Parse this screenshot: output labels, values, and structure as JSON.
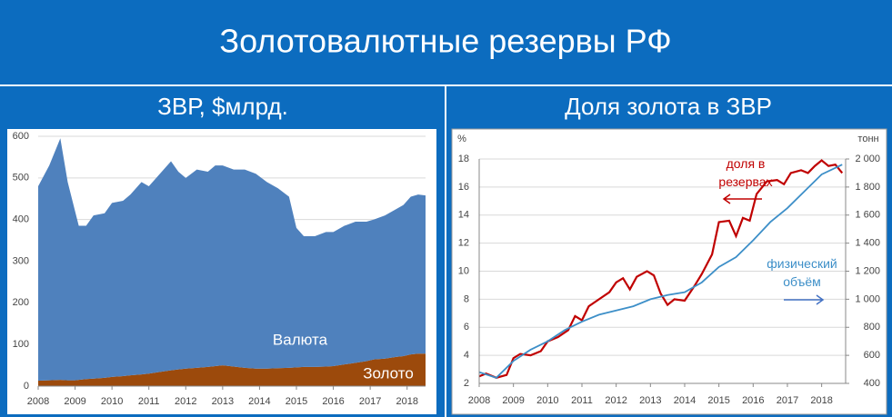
{
  "title": "Золотовалютные резервы РФ",
  "chart_data": [
    {
      "type": "stacked_area",
      "title": "ЗВР, $млрд.",
      "x": [
        2008.0,
        2008.3,
        2008.6,
        2008.8,
        2009.0,
        2009.1,
        2009.3,
        2009.5,
        2009.8,
        2010.0,
        2010.3,
        2010.5,
        2010.8,
        2011.0,
        2011.3,
        2011.6,
        2011.8,
        2012.0,
        2012.3,
        2012.6,
        2012.8,
        2013.0,
        2013.3,
        2013.6,
        2013.9,
        2014.2,
        2014.5,
        2014.8,
        2015.0,
        2015.2,
        2015.5,
        2015.8,
        2016.0,
        2016.3,
        2016.6,
        2016.9,
        2017.1,
        2017.4,
        2017.7,
        2017.9,
        2018.1,
        2018.3,
        2018.5
      ],
      "series": [
        {
          "name": "Золото",
          "color": "#9c4a0c",
          "values": [
            13,
            14,
            15,
            14,
            14,
            15,
            17,
            18,
            20,
            22,
            24,
            26,
            28,
            30,
            34,
            38,
            40,
            42,
            44,
            46,
            48,
            50,
            47,
            44,
            42,
            42,
            43,
            44,
            45,
            46,
            46,
            47,
            48,
            52,
            56,
            60,
            64,
            66,
            70,
            72,
            76,
            78,
            78
          ]
        },
        {
          "name": "Валюта",
          "color": "#4f81bd",
          "values": [
            467,
            516,
            580,
            476,
            406,
            370,
            368,
            392,
            395,
            418,
            421,
            434,
            462,
            450,
            476,
            502,
            475,
            458,
            476,
            469,
            482,
            480,
            473,
            476,
            468,
            448,
            432,
            411,
            335,
            314,
            314,
            323,
            322,
            333,
            339,
            335,
            336,
            344,
            355,
            363,
            379,
            382,
            380
          ]
        }
      ],
      "xlim": [
        2008,
        2018.5
      ],
      "xticks": [
        2008,
        2009,
        2010,
        2011,
        2012,
        2013,
        2014,
        2015,
        2016,
        2017,
        2018
      ],
      "ylim": [
        0,
        600
      ],
      "yticks": [
        0,
        100,
        200,
        300,
        400,
        500,
        600
      ],
      "grid": true
    },
    {
      "type": "line",
      "title": "Доля золота в ЗВР",
      "ylabel": "%",
      "y2label": "тонн",
      "series": [
        {
          "name": "доля в резервах",
          "color": "#c00000",
          "x": [
            2008.0,
            2008.2,
            2008.5,
            2008.8,
            2009.0,
            2009.2,
            2009.5,
            2009.8,
            2010.0,
            2010.3,
            2010.6,
            2010.8,
            2011.0,
            2011.2,
            2011.5,
            2011.8,
            2012.0,
            2012.2,
            2012.4,
            2012.6,
            2012.9,
            2013.1,
            2013.3,
            2013.5,
            2013.7,
            2014.0,
            2014.3,
            2014.5,
            2014.8,
            2015.0,
            2015.3,
            2015.5,
            2015.7,
            2015.9,
            2016.1,
            2016.4,
            2016.7,
            2016.9,
            2017.1,
            2017.4,
            2017.6,
            2017.8,
            2018.0,
            2018.2,
            2018.4,
            2018.6
          ],
          "values": [
            2.5,
            2.7,
            2.4,
            2.6,
            3.8,
            4.1,
            4.0,
            4.3,
            5.0,
            5.3,
            5.8,
            6.8,
            6.5,
            7.5,
            8.0,
            8.5,
            9.2,
            9.5,
            8.7,
            9.6,
            10.0,
            9.7,
            8.4,
            7.6,
            8.0,
            7.9,
            9.0,
            9.8,
            11.2,
            13.5,
            13.6,
            12.5,
            13.8,
            13.6,
            15.5,
            16.4,
            16.5,
            16.2,
            17.0,
            17.2,
            17.0,
            17.5,
            17.9,
            17.5,
            17.6,
            17.0
          ]
        },
        {
          "name": "физический объём",
          "color": "#3d8fc8",
          "axis": "y2",
          "x": [
            2008.0,
            2008.5,
            2009.0,
            2009.5,
            2010.0,
            2010.5,
            2011.0,
            2011.5,
            2012.0,
            2012.5,
            2013.0,
            2013.5,
            2014.0,
            2014.5,
            2015.0,
            2015.5,
            2016.0,
            2016.5,
            2017.0,
            2017.5,
            2018.0,
            2018.6
          ],
          "values": [
            480,
            440,
            560,
            640,
            700,
            780,
            840,
            890,
            920,
            950,
            1000,
            1030,
            1050,
            1120,
            1230,
            1300,
            1420,
            1550,
            1650,
            1770,
            1890,
            1960
          ]
        }
      ],
      "xlim": [
        2008,
        2018.7
      ],
      "xticks": [
        2008,
        2009,
        2010,
        2011,
        2012,
        2013,
        2014,
        2015,
        2016,
        2017,
        2018
      ],
      "ylim": [
        2,
        18
      ],
      "yticks": [
        2,
        4,
        6,
        8,
        10,
        12,
        14,
        16,
        18
      ],
      "y2lim": [
        400,
        2000
      ],
      "y2ticks": [
        400,
        600,
        800,
        {
          "value": 1000,
          "label": "1 000"
        },
        {
          "value": 1200,
          "label": "1 200"
        },
        {
          "value": 1400,
          "label": "1 400"
        },
        {
          "value": 1600,
          "label": "1 600"
        },
        {
          "value": 1800,
          "label": "1 800"
        },
        {
          "value": 2000,
          "label": "2 000"
        }
      ],
      "grid": true
    }
  ]
}
